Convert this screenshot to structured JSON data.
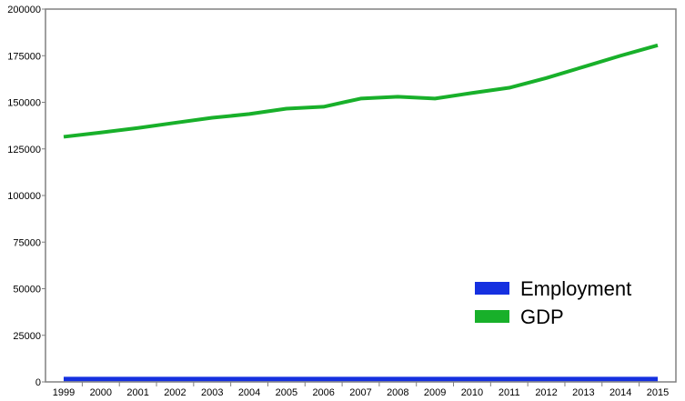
{
  "chart_data": {
    "type": "line",
    "title": "",
    "xlabel": "",
    "ylabel": "",
    "x": [
      "1999",
      "2000",
      "2001",
      "2002",
      "2003",
      "2004",
      "2005",
      "2006",
      "2007",
      "2008",
      "2009",
      "2010",
      "2011",
      "2012",
      "2013",
      "2014",
      "2015"
    ],
    "ylim": [
      0,
      200000
    ],
    "yticks": [
      "0",
      "25000",
      "50000",
      "75000",
      "100000",
      "125000",
      "150000",
      "175000",
      "200000"
    ],
    "grid": false,
    "legend_position": "bottom-right",
    "series": [
      {
        "name": "Employment",
        "color": "#1530e0",
        "values": [
          1500,
          1500,
          1500,
          1500,
          1500,
          1500,
          1500,
          1500,
          1500,
          1500,
          1500,
          1500,
          1500,
          1500,
          1500,
          1500,
          1500
        ]
      },
      {
        "name": "GDP",
        "color": "#18b02a",
        "values": [
          131500,
          133800,
          136200,
          139000,
          141700,
          143700,
          146600,
          147600,
          152000,
          153000,
          152000,
          155000,
          157800,
          163000,
          169000,
          175000,
          180600
        ]
      }
    ]
  }
}
